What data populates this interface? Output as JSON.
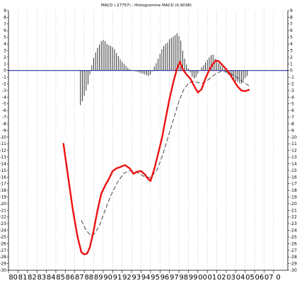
{
  "chart_data": {
    "type": "line",
    "title": "MACD (.27757) ; Histogramme MACD (0.9038)",
    "xlabel": "",
    "ylabel": "",
    "xlim": [
      1980,
      2009.5
    ],
    "ylim": [
      -30,
      9
    ],
    "grid": true,
    "x_tick_labels": [
      "80",
      "81",
      "82",
      "83",
      "84",
      "85",
      "86",
      "87",
      "88",
      "89",
      "90",
      "91",
      "92",
      "93",
      "94",
      "95",
      "96",
      "97",
      "98",
      "99",
      "00",
      "01",
      "02",
      "03",
      "04",
      "05",
      "06",
      "07",
      "0"
    ],
    "y_ticks": [
      9,
      8,
      7,
      6,
      5,
      4,
      3,
      2,
      1,
      0,
      -1,
      -2,
      -3,
      -4,
      -5,
      -6,
      -7,
      -8,
      -9,
      -10,
      -11,
      -12,
      -13,
      -14,
      -15,
      -16,
      -17,
      -18,
      -19,
      -20,
      -21,
      -22,
      -23,
      -24,
      -25,
      -26,
      -27,
      -28,
      -29,
      -30
    ],
    "zero_line": 0,
    "colors": {
      "macd": "#ee1111",
      "signal": "#333333",
      "histogram": "#333333",
      "zero_line": "#2c2ca8",
      "grid": "#999999"
    },
    "series": [
      {
        "style": "solid-red-thick",
        "x": [
          1985.8,
          1986.3,
          1986.8,
          1987.3,
          1987.7,
          1988.0,
          1988.3,
          1988.6,
          1989.0,
          1989.4,
          1989.8,
          1990.2,
          1990.6,
          1991.0,
          1991.4,
          1991.8,
          1992.3,
          1992.8,
          1993.2,
          1993.6,
          1994.0,
          1994.4,
          1994.7,
          1995.0,
          1995.4,
          1995.8,
          1996.2,
          1996.6,
          1997.0,
          1997.4,
          1997.8,
          1998.1,
          1998.4,
          1998.8,
          1999.2,
          1999.6,
          2000.0,
          2000.4,
          2000.8,
          2001.2,
          2001.6,
          2001.9,
          2002.2,
          2002.6,
          2003.0,
          2003.4,
          2003.8,
          2004.2,
          2004.6,
          2005.0,
          2005.4
        ],
        "y": [
          -11,
          -16,
          -21,
          -25,
          -27.3,
          -27.6,
          -27.5,
          -26.5,
          -24,
          -21,
          -18.5,
          -17.3,
          -16.3,
          -15.1,
          -14.7,
          -14.5,
          -14.2,
          -14.7,
          -15.5,
          -15.2,
          -15.1,
          -15.6,
          -16.2,
          -16.6,
          -14.8,
          -12.5,
          -10.2,
          -7.2,
          -4.3,
          -1.8,
          0.3,
          1.3,
          0.2,
          -0.6,
          -1.2,
          -2.3,
          -3.3,
          -2.8,
          -1.2,
          0.1,
          1.0,
          1.5,
          1.4,
          0.8,
          0.2,
          -0.6,
          -1.5,
          -2.4,
          -3.0,
          -3.1,
          -2.9
        ]
      },
      {
        "style": "dashed-dark",
        "x": [
          1987.7,
          1988.2,
          1988.7,
          1989.1,
          1989.6,
          1990.2,
          1990.8,
          1991.5,
          1992.2,
          1992.9,
          1993.6,
          1994.3,
          1995.0,
          1995.7,
          1996.3,
          1996.9,
          1997.5,
          1998.0,
          1998.5,
          1999.0,
          1999.5,
          2000.0,
          2000.5,
          2001.0,
          2001.5,
          2002.0,
          2002.5,
          2003.0,
          2003.5,
          2004.0,
          2004.5,
          2005.0,
          2005.4
        ],
        "y": [
          -22.5,
          -24.0,
          -24.8,
          -24.5,
          -23.3,
          -21.0,
          -18.8,
          -16.8,
          -15.4,
          -15.0,
          -15.3,
          -15.9,
          -16.1,
          -14.9,
          -12.6,
          -9.8,
          -7.0,
          -4.6,
          -2.9,
          -1.9,
          -1.6,
          -1.8,
          -1.9,
          -1.5,
          -0.9,
          -0.4,
          -0.1,
          -0.2,
          -0.5,
          -0.9,
          -1.4,
          -1.9,
          -2.3
        ]
      }
    ],
    "histogram": {
      "x": [
        1987.6,
        1987.8,
        1988.0,
        1988.2,
        1988.4,
        1988.6,
        1988.8,
        1989.0,
        1989.2,
        1989.4,
        1989.6,
        1989.8,
        1990.0,
        1990.2,
        1990.4,
        1990.6,
        1990.8,
        1991.0,
        1991.2,
        1991.4,
        1991.6,
        1991.8,
        1992.0,
        1992.2,
        1992.4,
        1992.6,
        1992.8,
        1993.0,
        1993.2,
        1993.4,
        1993.6,
        1993.8,
        1994.0,
        1994.2,
        1994.4,
        1994.6,
        1994.8,
        1995.0,
        1995.2,
        1995.4,
        1995.6,
        1995.8,
        1996.0,
        1996.2,
        1996.4,
        1996.6,
        1996.8,
        1997.0,
        1997.2,
        1997.4,
        1997.6,
        1997.8,
        1998.0,
        1998.2,
        1998.4,
        1998.6,
        1998.8,
        1999.0,
        1999.2,
        1999.4,
        1999.6,
        1999.8,
        2000.0,
        2000.2,
        2000.4,
        2000.6,
        2000.8,
        2001.0,
        2001.2,
        2001.4,
        2001.6,
        2001.8,
        2002.0,
        2002.2,
        2002.4,
        2002.6,
        2002.8,
        2003.0,
        2003.2,
        2003.4,
        2003.6,
        2003.8,
        2004.0,
        2004.2,
        2004.4,
        2004.6,
        2004.8,
        2005.0,
        2005.2
      ],
      "y": [
        -5.2,
        -4.6,
        -3.8,
        -3.0,
        -2.1,
        -0.6,
        0.8,
        1.9,
        2.7,
        3.4,
        3.9,
        4.4,
        4.6,
        4.4,
        4.0,
        3.8,
        3.7,
        3.5,
        3.2,
        2.6,
        2.2,
        1.7,
        1.3,
        1.0,
        0.7,
        0.4,
        0.2,
        0.1,
        0.0,
        -0.1,
        -0.2,
        -0.3,
        -0.4,
        -0.5,
        -0.6,
        -0.7,
        -0.8,
        -0.6,
        -0.1,
        0.6,
        1.1,
        1.8,
        2.5,
        3.2,
        3.7,
        4.0,
        4.2,
        4.7,
        4.9,
        5.1,
        5.3,
        5.6,
        5.2,
        4.5,
        3.0,
        1.8,
        0.9,
        0.3,
        -0.3,
        -0.9,
        -1.2,
        -1.0,
        -0.5,
        0.0,
        0.5,
        0.8,
        1.2,
        1.6,
        2.0,
        2.3,
        2.4,
        1.8,
        1.3,
        1.1,
        0.8,
        0.5,
        0.2,
        -0.3,
        -0.6,
        -0.8,
        -1.1,
        -1.4,
        -1.6,
        -1.7,
        -1.9,
        -2.0,
        -1.5,
        -1.1,
        -0.8
      ]
    }
  }
}
